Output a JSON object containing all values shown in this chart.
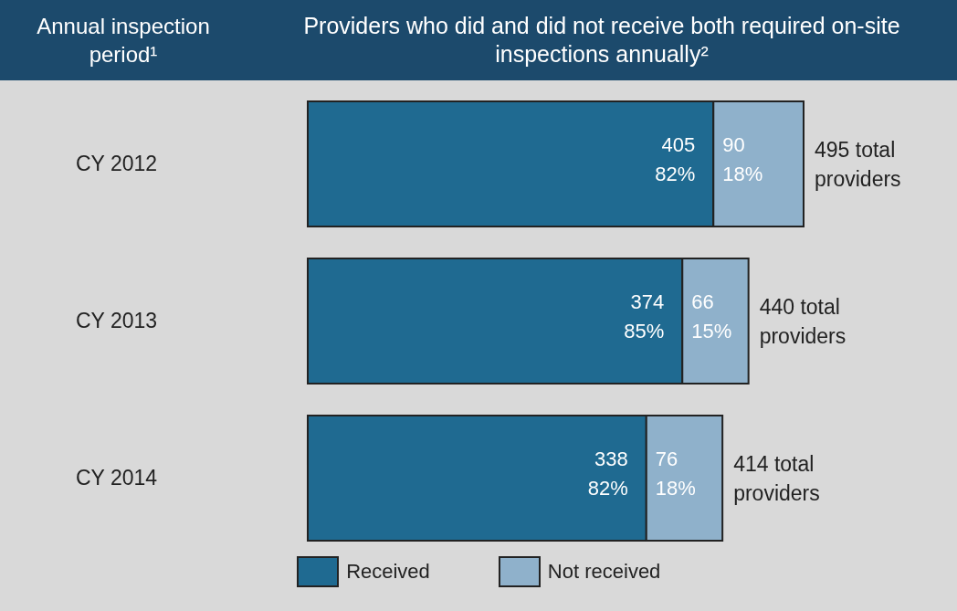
{
  "chart_data": {
    "type": "bar",
    "orientation": "horizontal",
    "stacked": true,
    "title": "Providers who did and did not receive both required on-site inspections annually²",
    "ylabel": "Annual inspection period¹",
    "categories": [
      "CY 2012",
      "CY 2013",
      "CY 2014"
    ],
    "series": [
      {
        "name": "Received",
        "color": "#1f6a91",
        "values": [
          405,
          374,
          338
        ],
        "value_labels": [
          "405\n82%",
          "374\n85%",
          "338\n82%"
        ]
      },
      {
        "name": "Not received",
        "color": "#8fb1cb",
        "values": [
          90,
          66,
          76
        ],
        "value_labels": [
          "90\n18%",
          "66\n15%",
          "76\n18%"
        ]
      }
    ],
    "totals": [
      "495 total\nproviders",
      "440 total\nproviders",
      "414 total\nproviders"
    ],
    "legend": "bottom"
  }
}
